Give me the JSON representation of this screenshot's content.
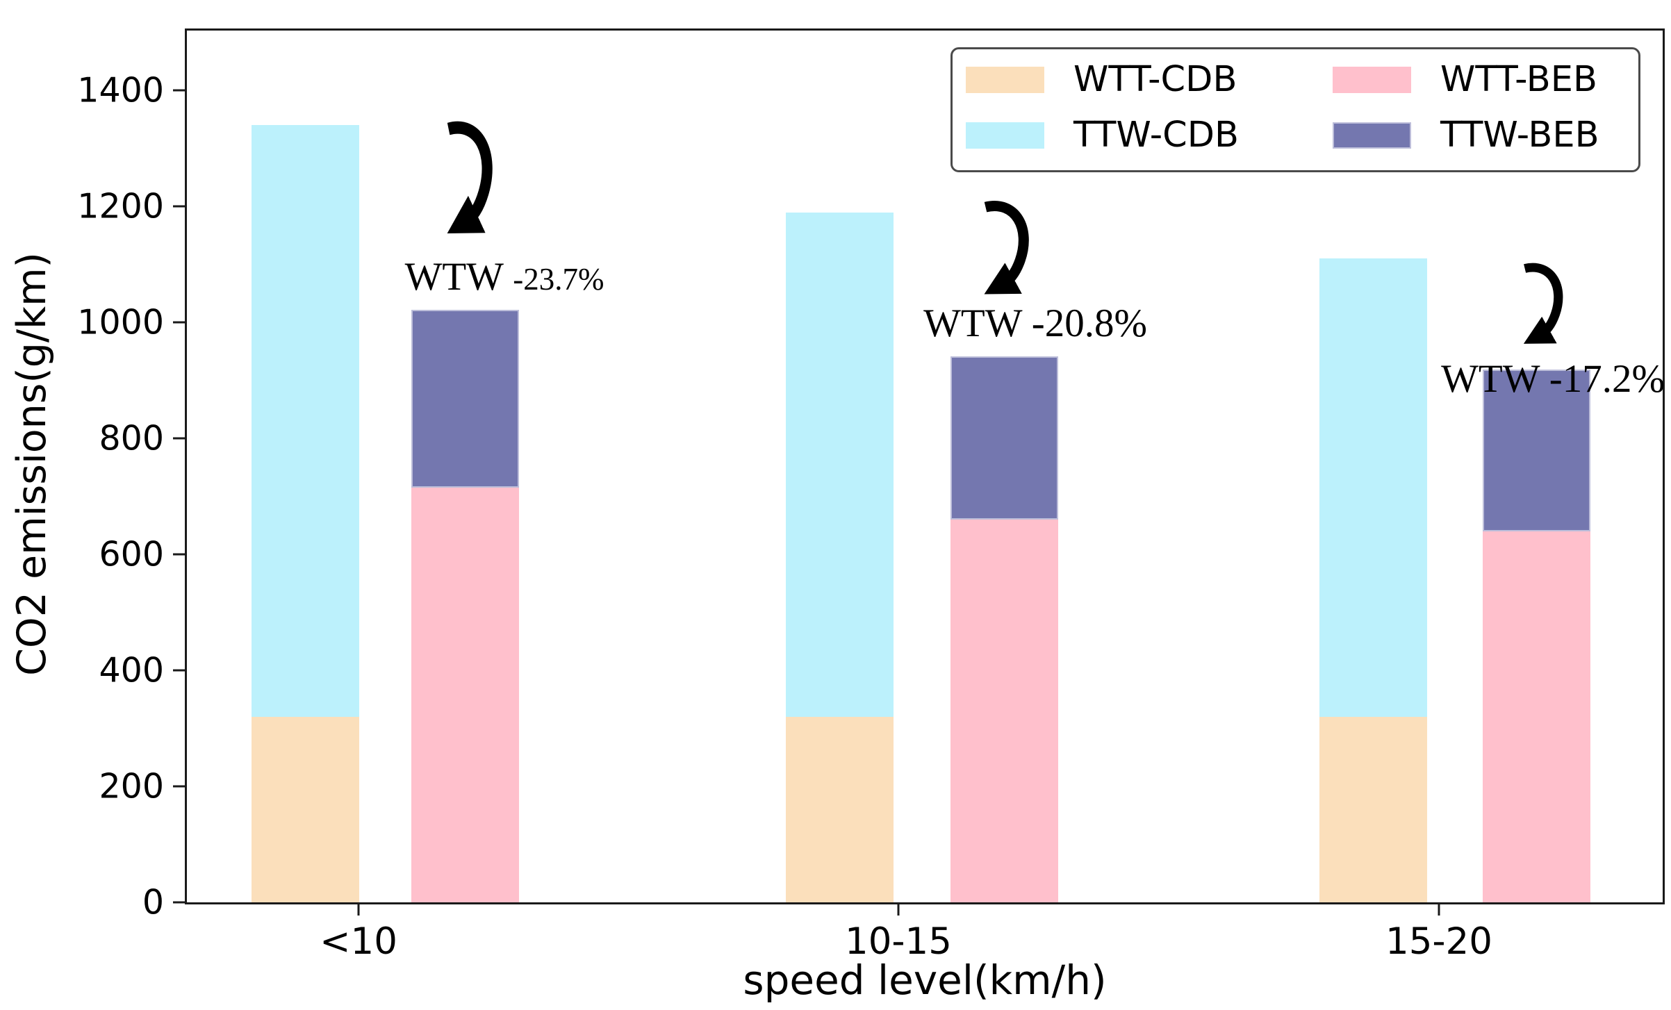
{
  "figure": {
    "ylabel": "CO2 emissions(g/km)",
    "xlabel": "speed level(km/h)",
    "background": "#ffffff",
    "axis_color": "#1a1a1a"
  },
  "legend": {
    "position": "upper right",
    "entries": [
      {
        "label": "WTT-CDB",
        "color": "#FBDFBB",
        "border": ""
      },
      {
        "label": "TTW-CDB",
        "color": "#BCF1FC",
        "border": ""
      },
      {
        "label": "WTT-BEB",
        "color": "#FFC0CC",
        "border": ""
      },
      {
        "label": "TTW-BEB",
        "color": "#7477AF",
        "border": "#bdbeda"
      }
    ]
  },
  "chart_data": {
    "type": "bar",
    "stacked": true,
    "categories": [
      "<10",
      "10-15",
      "15-20"
    ],
    "xlabel": "speed level(km/h)",
    "ylabel": "CO2 emissions(g/km)",
    "ylim": [
      0,
      1503
    ],
    "yticks": [
      0,
      200,
      400,
      600,
      800,
      1000,
      1200,
      1400
    ],
    "grid": false,
    "legend_position": "upper right",
    "series": [
      {
        "name": "WTT-CDB",
        "stack": "CDB",
        "color": "#FBDFBB",
        "values": [
          320,
          320,
          320
        ]
      },
      {
        "name": "TTW-CDB",
        "stack": "CDB",
        "color": "#BCF1FC",
        "values": [
          1020,
          870,
          790
        ]
      },
      {
        "name": "WTT-BEB",
        "stack": "BEB",
        "color": "#FFC0CC",
        "values": [
          715,
          660,
          640
        ]
      },
      {
        "name": "TTW-BEB",
        "stack": "BEB",
        "color": "#7477AF",
        "values": [
          307,
          282,
          279
        ]
      }
    ],
    "stack_totals": {
      "CDB": [
        1340,
        1190,
        1110
      ],
      "BEB": [
        1022,
        942,
        919
      ]
    },
    "annotations": [
      {
        "label": "WTW",
        "value": "-23.7%",
        "category": "<10"
      },
      {
        "label": "WTW",
        "value": "-20.8%",
        "category": "10-15"
      },
      {
        "label": "WTW",
        "value": "-17.2%",
        "category": "15-20"
      }
    ]
  }
}
